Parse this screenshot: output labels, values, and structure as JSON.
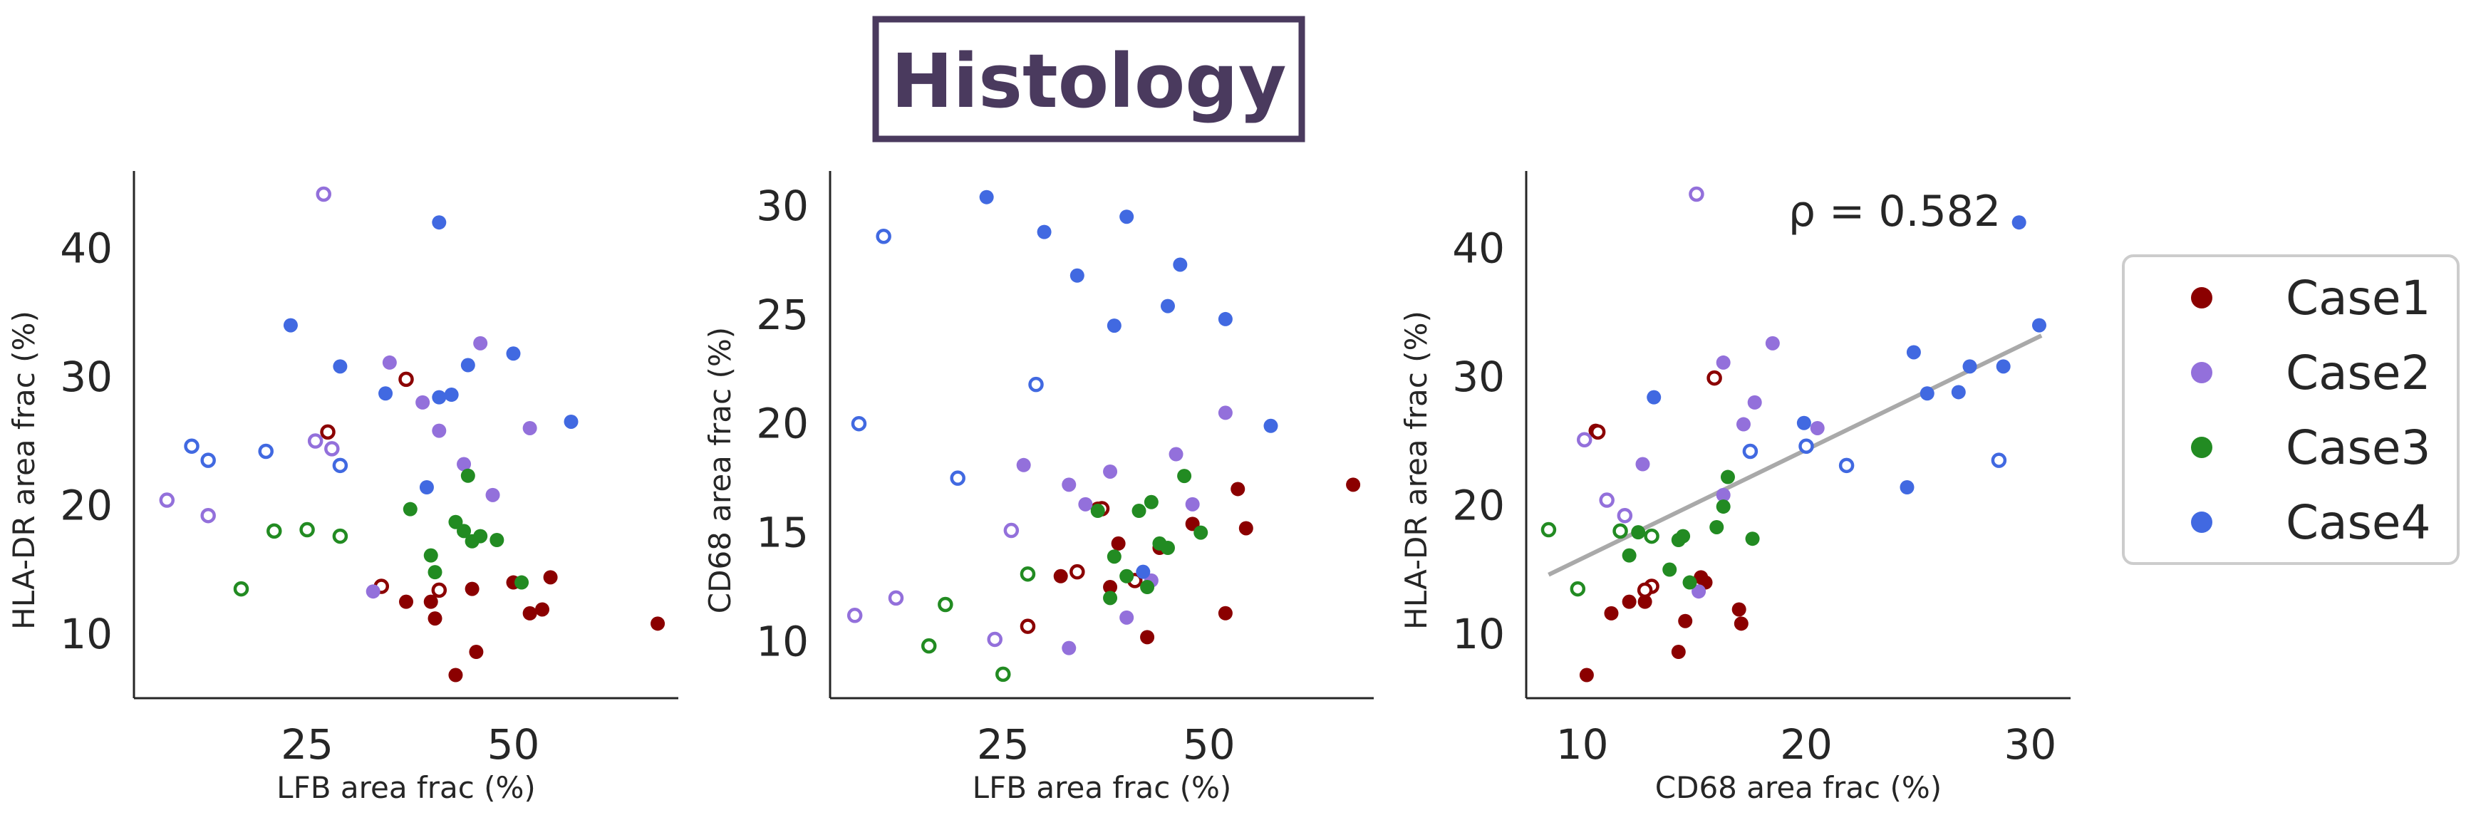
{
  "title": "Histology",
  "colors": {
    "Case1": "#8b0000",
    "Case2": "#9370db",
    "Case3": "#228b22",
    "Case4": "#4169e1",
    "title": "#4a3a5e",
    "fit": "#a9a9a9"
  },
  "legend": {
    "entries": [
      "Case1",
      "Case2",
      "Case3",
      "Case4"
    ],
    "placement": "right"
  },
  "chart_data": [
    {
      "type": "scatter",
      "xlabel": "LFB area frac (%)",
      "ylabel": "HLA-DR area frac (%)",
      "xticks": [
        25,
        50
      ],
      "yticks": [
        10,
        20,
        30,
        40
      ],
      "xlim": [
        4,
        70
      ],
      "ylim": [
        5,
        46
      ],
      "series": [
        {
          "name": "Case1",
          "filled": [
            [
              37,
              12.5
            ],
            [
              40,
              12.5
            ],
            [
              40.5,
              11.2
            ],
            [
              43,
              6.8
            ],
            [
              45,
              13.5
            ],
            [
              45.5,
              8.6
            ],
            [
              50,
              14
            ],
            [
              52,
              11.6
            ],
            [
              53.5,
              11.9
            ],
            [
              54.5,
              14.4
            ],
            [
              67.5,
              10.8
            ]
          ],
          "open": [
            [
              37,
              29.8
            ],
            [
              27.5,
              25.7
            ],
            [
              34,
              13.7
            ],
            [
              41,
              13.4
            ]
          ]
        },
        {
          "name": "Case2",
          "filled": [
            [
              35,
              31.1
            ],
            [
              39,
              28
            ],
            [
              41,
              25.8
            ],
            [
              44,
              23.2
            ],
            [
              46,
              32.6
            ],
            [
              47.5,
              20.8
            ],
            [
              52,
              26
            ],
            [
              33,
              13.3
            ]
          ],
          "open": [
            [
              27,
              44.2
            ],
            [
              26,
              25
            ],
            [
              28,
              24.4
            ],
            [
              8,
              20.4
            ],
            [
              13,
              19.2
            ]
          ]
        },
        {
          "name": "Case3",
          "filled": [
            [
              37.5,
              19.7
            ],
            [
              40,
              16.1
            ],
            [
              40.5,
              14.8
            ],
            [
              43,
              18.7
            ],
            [
              44,
              18
            ],
            [
              44.5,
              22.3
            ],
            [
              45,
              17.2
            ],
            [
              46,
              17.6
            ],
            [
              48,
              17.3
            ],
            [
              51,
              14
            ]
          ],
          "open": [
            [
              21,
              18
            ],
            [
              25,
              18.1
            ],
            [
              29,
              17.6
            ],
            [
              17,
              13.5
            ]
          ]
        },
        {
          "name": "Case4",
          "filled": [
            [
              41,
              42
            ],
            [
              23,
              34
            ],
            [
              29,
              30.8
            ],
            [
              34.5,
              28.7
            ],
            [
              39.5,
              21.4
            ],
            [
              41,
              28.4
            ],
            [
              42.5,
              28.6
            ],
            [
              44.5,
              30.9
            ],
            [
              50,
              31.8
            ],
            [
              57,
              26.5
            ]
          ],
          "open": [
            [
              11,
              24.6
            ],
            [
              13,
              23.5
            ],
            [
              20,
              24.2
            ],
            [
              29,
              23.1
            ]
          ]
        }
      ]
    },
    {
      "type": "scatter",
      "xlabel": "LFB area frac (%)",
      "ylabel": "CD68 area frac (%)",
      "xticks": [
        25,
        50
      ],
      "yticks": [
        10,
        15,
        20,
        25,
        30
      ],
      "xlim": [
        4,
        70
      ],
      "ylim": [
        7.4,
        31.6
      ],
      "series": [
        {
          "name": "Case1",
          "filled": [
            [
              32,
              13
            ],
            [
              36.5,
              16.1
            ],
            [
              38,
              12.5
            ],
            [
              39,
              14.5
            ],
            [
              42.5,
              10.2
            ],
            [
              44,
              14.3
            ],
            [
              48,
              15.4
            ],
            [
              52,
              11.3
            ],
            [
              53.5,
              17
            ],
            [
              54.5,
              15.2
            ],
            [
              67.5,
              17.2
            ]
          ],
          "open": [
            [
              28,
              10.7
            ],
            [
              34,
              13.2
            ],
            [
              41,
              12.8
            ],
            [
              37,
              16.1
            ]
          ]
        },
        {
          "name": "Case2",
          "filled": [
            [
              27.5,
              18.1
            ],
            [
              33,
              17.2
            ],
            [
              35,
              16.3
            ],
            [
              38,
              17.8
            ],
            [
              40,
              11.1
            ],
            [
              43,
              12.8
            ],
            [
              46,
              18.6
            ],
            [
              48,
              16.3
            ],
            [
              52,
              20.5
            ],
            [
              33,
              9.7
            ]
          ],
          "open": [
            [
              7,
              11.2
            ],
            [
              12,
              12
            ],
            [
              26,
              15.1
            ],
            [
              24,
              10.1
            ]
          ]
        },
        {
          "name": "Case3",
          "filled": [
            [
              36.5,
              16
            ],
            [
              38,
              12
            ],
            [
              38.5,
              13.9
            ],
            [
              40,
              13
            ],
            [
              41.5,
              16
            ],
            [
              42.5,
              12.5
            ],
            [
              43,
              16.4
            ],
            [
              44,
              14.5
            ],
            [
              45,
              14.3
            ],
            [
              47,
              17.6
            ],
            [
              49,
              15
            ]
          ],
          "open": [
            [
              16,
              9.8
            ],
            [
              18,
              11.7
            ],
            [
              28,
              13.1
            ],
            [
              25,
              8.5
            ]
          ]
        },
        {
          "name": "Case4",
          "filled": [
            [
              23,
              30.4
            ],
            [
              30,
              28.8
            ],
            [
              34,
              26.8
            ],
            [
              38.5,
              24.5
            ],
            [
              40,
              29.5
            ],
            [
              42,
              13.2
            ],
            [
              45,
              25.4
            ],
            [
              46.5,
              27.3
            ],
            [
              52,
              24.8
            ],
            [
              57.5,
              19.9
            ]
          ],
          "open": [
            [
              10.5,
              28.6
            ],
            [
              7.5,
              20
            ],
            [
              19.5,
              17.5
            ],
            [
              29,
              21.8
            ]
          ]
        }
      ]
    },
    {
      "type": "scatter",
      "xlabel": "CD68 area frac (%)",
      "ylabel": "HLA-DR area frac (%)",
      "xticks": [
        10,
        20,
        30
      ],
      "yticks": [
        10,
        20,
        30,
        40
      ],
      "xlim": [
        7.5,
        31.8
      ],
      "ylim": [
        5,
        46
      ],
      "annotation": "ρ = 0.582",
      "fit_line": {
        "x": [
          8.5,
          30.5
        ],
        "y": [
          14.6,
          33.2
        ]
      },
      "series": [
        {
          "name": "Case1",
          "filled": [
            [
              10.2,
              6.8
            ],
            [
              11.3,
              11.6
            ],
            [
              12.1,
              12.5
            ],
            [
              12.8,
              12.5
            ],
            [
              14.3,
              8.6
            ],
            [
              14.6,
              11
            ],
            [
              15.3,
              14.4
            ],
            [
              15.5,
              14
            ],
            [
              17,
              11.9
            ],
            [
              17.1,
              10.8
            ],
            [
              10.6,
              25.8
            ]
          ],
          "open": [
            [
              15.9,
              29.9
            ],
            [
              10.7,
              25.7
            ],
            [
              13.1,
              13.7
            ],
            [
              12.8,
              13.4
            ]
          ]
        },
        {
          "name": "Case2",
          "filled": [
            [
              12.7,
              23.2
            ],
            [
              16.3,
              31.1
            ],
            [
              16.3,
              20.8
            ],
            [
              17.2,
              26.3
            ],
            [
              17.7,
              28
            ],
            [
              18.5,
              32.6
            ],
            [
              20.5,
              26
            ],
            [
              15.2,
              13.3
            ]
          ],
          "open": [
            [
              15.1,
              44.2
            ],
            [
              10.1,
              25.1
            ],
            [
              11.1,
              20.4
            ],
            [
              11.9,
              19.2
            ]
          ]
        },
        {
          "name": "Case3",
          "filled": [
            [
              12.1,
              16.1
            ],
            [
              12.5,
              17.9
            ],
            [
              13.9,
              15
            ],
            [
              14.3,
              17.3
            ],
            [
              14.5,
              17.6
            ],
            [
              14.8,
              14
            ],
            [
              16,
              18.3
            ],
            [
              16.3,
              19.9
            ],
            [
              16.5,
              22.2
            ],
            [
              17.6,
              17.4
            ]
          ],
          "open": [
            [
              8.5,
              18.1
            ],
            [
              11.7,
              18
            ],
            [
              13.1,
              17.6
            ],
            [
              9.8,
              13.5
            ]
          ]
        },
        {
          "name": "Case4",
          "filled": [
            [
              13.2,
              28.4
            ],
            [
              19.9,
              26.4
            ],
            [
              24.5,
              21.4
            ],
            [
              24.8,
              31.9
            ],
            [
              25.4,
              28.7
            ],
            [
              26.8,
              28.8
            ],
            [
              27.3,
              30.8
            ],
            [
              28.8,
              30.8
            ],
            [
              29.5,
              42
            ],
            [
              30.4,
              34
            ]
          ],
          "open": [
            [
              17.5,
              24.2
            ],
            [
              20,
              24.6
            ],
            [
              21.8,
              23.1
            ],
            [
              28.6,
              23.5
            ]
          ]
        }
      ]
    }
  ]
}
